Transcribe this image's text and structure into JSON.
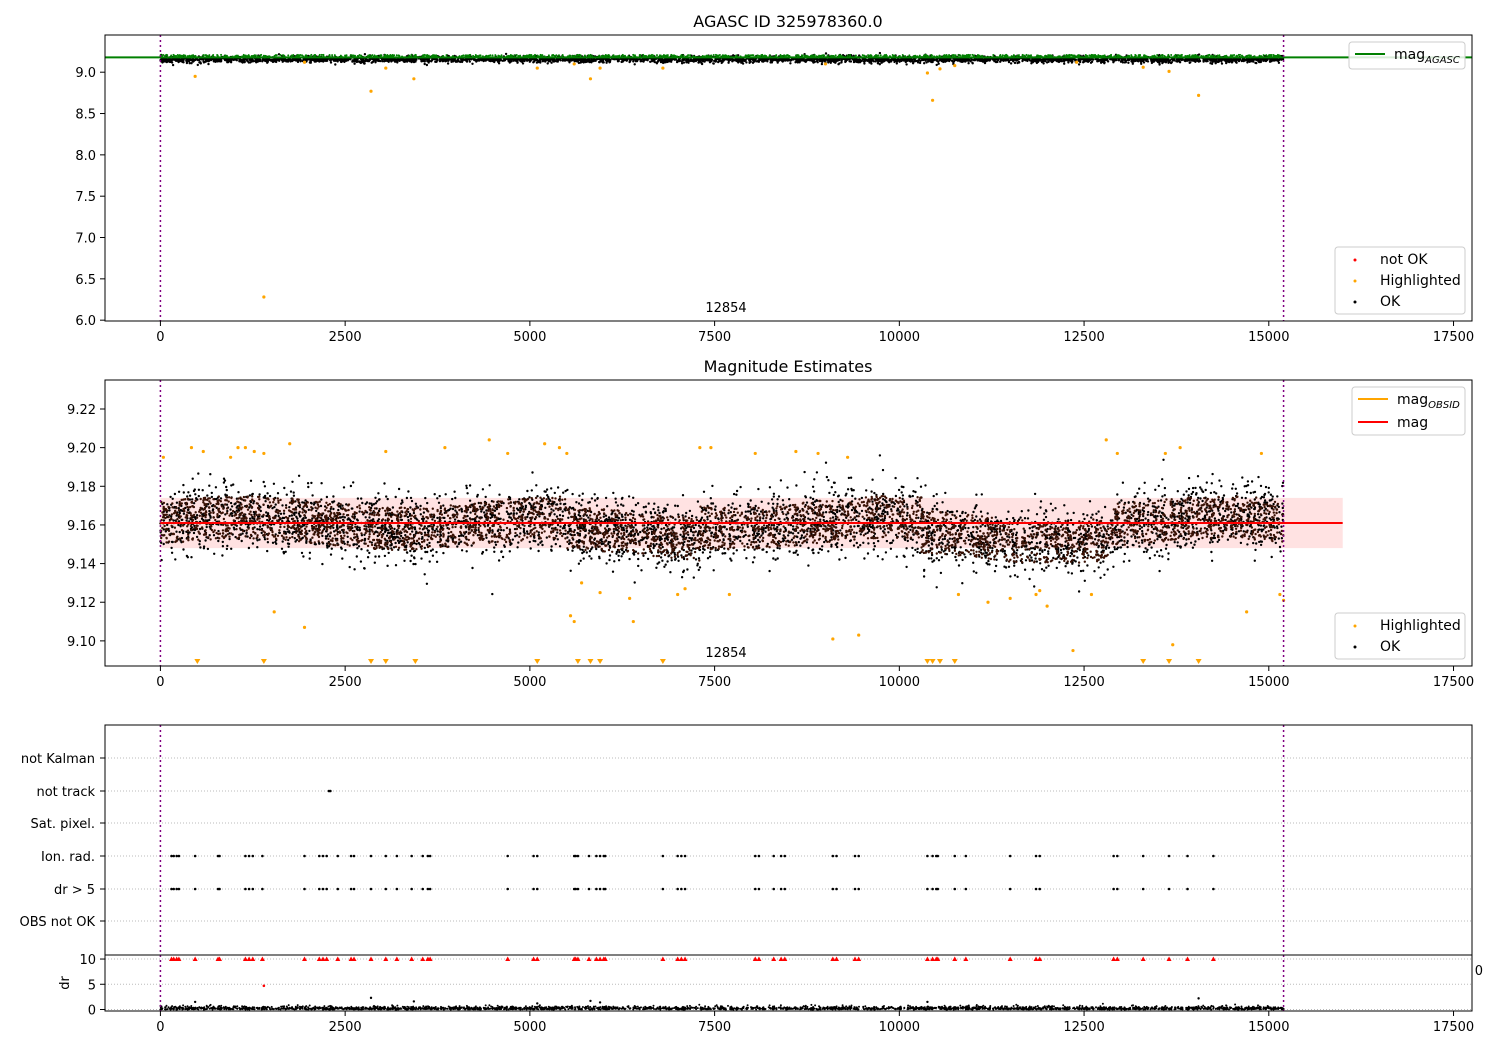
{
  "chart_data": [
    {
      "type": "scatter",
      "title": "AGASC ID 325978360.0",
      "xlabel": "",
      "ylabel": "",
      "xlim": [
        -750,
        17750
      ],
      "ylim": [
        5.99,
        9.45
      ],
      "x_ticks": [
        "0",
        "2500",
        "5000",
        "7500",
        "10000",
        "12500",
        "15000",
        "17500"
      ],
      "y_ticks": [
        "6.0",
        "6.5",
        "7.0",
        "7.5",
        "8.0",
        "8.5",
        "9.0"
      ],
      "annotation": "12854",
      "vlines": [
        0,
        15200
      ],
      "mag_agasc": 9.18,
      "ok_band": {
        "x_range": [
          0,
          15200
        ],
        "y_center": 9.155,
        "y_spread": 0.04
      },
      "highlighted_points": [
        [
          470,
          8.95
        ],
        [
          1400,
          6.28
        ],
        [
          1950,
          9.12
        ],
        [
          2850,
          8.77
        ],
        [
          3050,
          9.05
        ],
        [
          3430,
          8.92
        ],
        [
          5100,
          9.05
        ],
        [
          5600,
          9.1
        ],
        [
          5820,
          8.92
        ],
        [
          5950,
          9.05
        ],
        [
          6800,
          9.05
        ],
        [
          9000,
          9.1
        ],
        [
          10380,
          8.99
        ],
        [
          10450,
          8.66
        ],
        [
          10550,
          9.04
        ],
        [
          10750,
          9.08
        ],
        [
          12400,
          9.12
        ],
        [
          13300,
          9.06
        ],
        [
          13650,
          9.01
        ],
        [
          14050,
          8.72
        ]
      ],
      "legend_line": {
        "label": "mag",
        "sub": "AGASC",
        "color": "#008000"
      },
      "legend_points": [
        {
          "label": "not OK",
          "color": "#ff0000"
        },
        {
          "label": "Highlighted",
          "color": "#ffa500"
        },
        {
          "label": "OK",
          "color": "#000000"
        }
      ]
    },
    {
      "type": "scatter",
      "title": "Magnitude Estimates",
      "xlabel": "",
      "ylabel": "",
      "xlim": [
        -750,
        17750
      ],
      "ylim": [
        9.087,
        9.235
      ],
      "x_ticks": [
        "0",
        "2500",
        "5000",
        "7500",
        "10000",
        "12500",
        "15000",
        "17500"
      ],
      "y_ticks": [
        "9.10",
        "9.12",
        "9.14",
        "9.16",
        "9.18",
        "9.20",
        "9.22"
      ],
      "annotation": "12854",
      "vlines": [
        0,
        15200
      ],
      "mag": 9.161,
      "mag_band": [
        9.148,
        9.174
      ],
      "mag_line_xrange": [
        0,
        16000
      ],
      "ok_band": {
        "x_range": [
          0,
          15200
        ],
        "y_center": 9.161,
        "y_spread": 0.012
      },
      "highlighted_points": [
        [
          40,
          9.195
        ],
        [
          420,
          9.2
        ],
        [
          580,
          9.198
        ],
        [
          950,
          9.195
        ],
        [
          1050,
          9.2
        ],
        [
          1150,
          9.2
        ],
        [
          1270,
          9.198
        ],
        [
          1400,
          9.197
        ],
        [
          1540,
          9.115
        ],
        [
          1750,
          9.202
        ],
        [
          1950,
          9.107
        ],
        [
          3050,
          9.198
        ],
        [
          3850,
          9.2
        ],
        [
          4450,
          9.204
        ],
        [
          4700,
          9.197
        ],
        [
          5200,
          9.202
        ],
        [
          5400,
          9.2
        ],
        [
          5500,
          9.197
        ],
        [
          5550,
          9.113
        ],
        [
          5600,
          9.11
        ],
        [
          5700,
          9.13
        ],
        [
          5950,
          9.125
        ],
        [
          6350,
          9.122
        ],
        [
          6400,
          9.11
        ],
        [
          7000,
          9.124
        ],
        [
          7100,
          9.127
        ],
        [
          7300,
          9.2
        ],
        [
          7450,
          9.2
        ],
        [
          7700,
          9.124
        ],
        [
          8050,
          9.197
        ],
        [
          8600,
          9.198
        ],
        [
          8900,
          9.197
        ],
        [
          9100,
          9.101
        ],
        [
          9300,
          9.195
        ],
        [
          9450,
          9.103
        ],
        [
          10800,
          9.124
        ],
        [
          11200,
          9.12
        ],
        [
          11500,
          9.122
        ],
        [
          11850,
          9.124
        ],
        [
          11900,
          9.126
        ],
        [
          12000,
          9.118
        ],
        [
          12350,
          9.095
        ],
        [
          12600,
          9.124
        ],
        [
          12800,
          9.204
        ],
        [
          12950,
          9.197
        ],
        [
          13600,
          9.197
        ],
        [
          13700,
          9.098
        ],
        [
          13800,
          9.2
        ],
        [
          14700,
          9.115
        ],
        [
          14900,
          9.197
        ],
        [
          15150,
          9.124
        ],
        [
          15200,
          9.121
        ]
      ],
      "lower_limit_markers": [
        500,
        1400,
        2850,
        3050,
        3450,
        5100,
        5650,
        5820,
        5950,
        6800,
        10380,
        10450,
        10550,
        10750,
        13300,
        13650,
        14050
      ],
      "legend_lines": [
        {
          "label": "mag",
          "sub": "OBSID",
          "color": "#ffa500"
        },
        {
          "label": "mag",
          "sub": "",
          "color": "#ff0000"
        }
      ],
      "legend_points": [
        {
          "label": "Highlighted",
          "color": "#ffa500"
        },
        {
          "label": "OK",
          "color": "#000000"
        }
      ]
    },
    {
      "type": "scatter",
      "title": "",
      "xlabel": "",
      "ylabel": "",
      "xlim": [
        -750,
        17750
      ],
      "categories": [
        "not Kalman",
        "not track",
        "Sat. pixel.",
        "Ion. rad.",
        "dr > 5",
        "OBS not OK"
      ],
      "flag_points": {
        "not track": [
          2280,
          2300
        ],
        "Ion. rad.": [
          150,
          180,
          220,
          250,
          470,
          780,
          800,
          1150,
          1200,
          1250,
          1380,
          1950,
          2150,
          2200,
          2250,
          2400,
          2580,
          2620,
          2850,
          3050,
          3200,
          3400,
          3550,
          3620,
          3650,
          4700,
          5050,
          5100,
          5600,
          5620,
          5650,
          5800,
          5900,
          5950,
          6000,
          6020,
          6800,
          7000,
          7050,
          7100,
          8050,
          8100,
          8300,
          8400,
          8450,
          9100,
          9150,
          9400,
          9450,
          10380,
          10450,
          10500,
          10520,
          10750,
          10900,
          11500,
          11850,
          11900,
          12900,
          12950,
          13300,
          13650,
          13900,
          14250
        ],
        "dr > 5": [
          150,
          180,
          220,
          250,
          470,
          780,
          800,
          1150,
          1200,
          1250,
          1380,
          1950,
          2150,
          2200,
          2250,
          2400,
          2580,
          2620,
          2850,
          3050,
          3200,
          3400,
          3550,
          3620,
          3650,
          4700,
          5050,
          5100,
          5600,
          5620,
          5650,
          5800,
          5900,
          5950,
          6000,
          6020,
          6800,
          7000,
          7050,
          7100,
          8050,
          8100,
          8300,
          8400,
          8450,
          9100,
          9150,
          9400,
          9450,
          10380,
          10450,
          10500,
          10520,
          10750,
          10900,
          11500,
          11850,
          11900,
          12900,
          12950,
          13300,
          13650,
          13900,
          14250
        ]
      },
      "vlines": [
        0,
        15200
      ],
      "cut_tick_label": "0"
    },
    {
      "type": "scatter",
      "title": "",
      "xlabel": "",
      "ylabel": "dr",
      "xlim": [
        -750,
        17750
      ],
      "ylim": [
        -0.3,
        10.8
      ],
      "x_ticks": [
        "0",
        "2500",
        "5000",
        "7500",
        "10000",
        "12500",
        "15000",
        "17500"
      ],
      "y_ticks": [
        "0",
        "5",
        "10"
      ],
      "vlines": [
        0,
        15200
      ],
      "capped_value": 10,
      "notok_points": [
        [
          1400,
          4.7
        ]
      ],
      "outlier_points": [
        [
          470,
          1.5
        ],
        [
          2850,
          2.3
        ],
        [
          3430,
          1.6
        ],
        [
          5100,
          1.2
        ],
        [
          5820,
          1.7
        ],
        [
          5950,
          1.4
        ],
        [
          10380,
          1.5
        ],
        [
          14050,
          2.2
        ]
      ]
    }
  ]
}
